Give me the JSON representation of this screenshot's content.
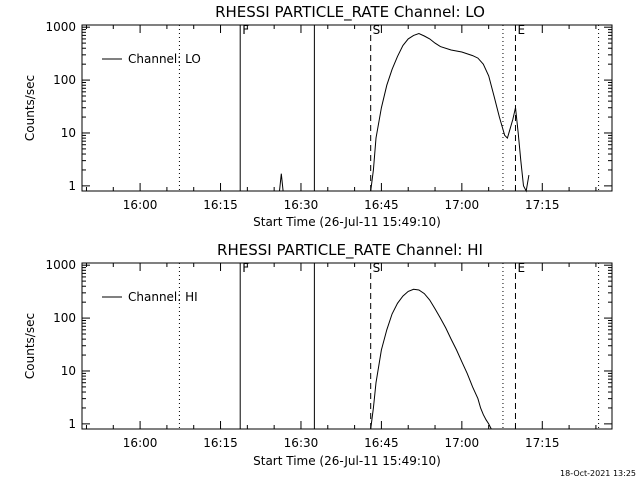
{
  "timestamp": "18-Oct-2021 13:25",
  "chart_data": [
    {
      "type": "line",
      "title": "RHESSI PARTICLE_RATE Channel: LO",
      "xlabel": "Start Time (26-Jul-11 15:49:10)",
      "ylabel": "Counts/sec",
      "legend": "Channel: LO",
      "legend_position": "top-left",
      "x_ticks": [
        "16:00",
        "16:15",
        "16:30",
        "16:45",
        "17:00",
        "17:15"
      ],
      "y_ticks": [
        "1",
        "10",
        "100",
        "1000"
      ],
      "yscale": "log",
      "xlim": [
        "15:49:10",
        "17:28:00"
      ],
      "ylim": [
        0.8,
        1100
      ],
      "markers": [
        {
          "label": "",
          "time": "16:07:20",
          "style": "dotted"
        },
        {
          "label": "F",
          "time": "16:18:40",
          "style": "solid"
        },
        {
          "label": "",
          "time": "16:32:30",
          "style": "solid"
        },
        {
          "label": "S",
          "time": "16:43:00",
          "style": "dashed"
        },
        {
          "label": "",
          "time": "17:07:40",
          "style": "dotted"
        },
        {
          "label": "E",
          "time": "17:10:00",
          "style": "dashed"
        },
        {
          "label": "",
          "time": "17:25:30",
          "style": "dotted"
        }
      ],
      "series": [
        {
          "times": [
            "16:26:00",
            "16:26:20",
            "16:26:40",
            "16:43:00",
            "16:43:30",
            "16:44:00",
            "16:45:00",
            "16:46:00",
            "16:47:00",
            "16:48:00",
            "16:49:00",
            "16:50:00",
            "16:51:00",
            "16:52:00",
            "16:53:00",
            "16:54:00",
            "16:55:00",
            "16:56:00",
            "16:58:00",
            "17:00:00",
            "17:02:00",
            "17:03:00",
            "17:04:00",
            "17:05:00",
            "17:06:00",
            "17:07:00",
            "17:08:00",
            "17:08:30",
            "17:09:00",
            "17:09:30",
            "17:10:00",
            "17:10:30",
            "17:11:00",
            "17:11:30",
            "17:12:00",
            "17:12:30"
          ],
          "values": [
            0.8,
            1.7,
            0.8,
            0.8,
            2.0,
            8,
            30,
            80,
            160,
            280,
            450,
            600,
            700,
            760,
            680,
            600,
            500,
            430,
            370,
            340,
            290,
            260,
            200,
            120,
            50,
            20,
            9,
            8,
            12,
            18,
            30,
            10,
            3,
            1,
            0.8,
            1.6
          ]
        }
      ]
    },
    {
      "type": "line",
      "title": "RHESSI PARTICLE_RATE Channel: HI",
      "xlabel": "Start Time (26-Jul-11 15:49:10)",
      "ylabel": "Counts/sec",
      "legend": "Channel: HI",
      "legend_position": "top-left",
      "x_ticks": [
        "16:00",
        "16:15",
        "16:30",
        "16:45",
        "17:00",
        "17:15"
      ],
      "y_ticks": [
        "1",
        "10",
        "100",
        "1000"
      ],
      "yscale": "log",
      "xlim": [
        "15:49:10",
        "17:28:00"
      ],
      "ylim": [
        0.8,
        1100
      ],
      "markers": [
        {
          "label": "",
          "time": "16:07:20",
          "style": "dotted"
        },
        {
          "label": "F",
          "time": "16:18:40",
          "style": "solid"
        },
        {
          "label": "",
          "time": "16:32:30",
          "style": "solid"
        },
        {
          "label": "S",
          "time": "16:43:00",
          "style": "dashed"
        },
        {
          "label": "",
          "time": "17:07:40",
          "style": "dotted"
        },
        {
          "label": "E",
          "time": "17:10:00",
          "style": "dashed"
        },
        {
          "label": "",
          "time": "17:25:30",
          "style": "dotted"
        }
      ],
      "series": [
        {
          "times": [
            "16:43:00",
            "16:43:30",
            "16:44:00",
            "16:45:00",
            "16:46:00",
            "16:47:00",
            "16:48:00",
            "16:49:00",
            "16:50:00",
            "16:51:00",
            "16:52:00",
            "16:53:00",
            "16:54:00",
            "16:55:00",
            "16:56:00",
            "16:57:00",
            "16:58:00",
            "16:59:00",
            "17:00:00",
            "17:01:00",
            "17:02:00",
            "17:03:00",
            "17:03:30",
            "17:04:00",
            "17:04:30",
            "17:05:00",
            "17:05:30"
          ],
          "values": [
            0.8,
            2,
            6,
            25,
            60,
            120,
            190,
            260,
            320,
            350,
            340,
            290,
            220,
            150,
            100,
            65,
            40,
            25,
            15,
            9,
            5,
            3,
            2,
            1.5,
            1.2,
            1,
            0.8
          ]
        }
      ]
    }
  ]
}
